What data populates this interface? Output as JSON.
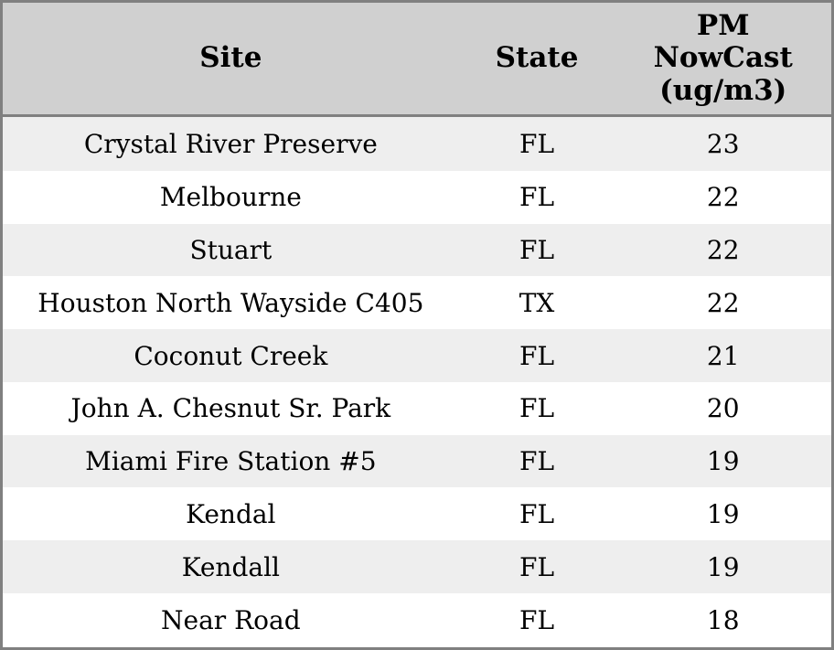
{
  "colors": {
    "border": "#808080",
    "header_bg": "#d0d0d0",
    "row_alt_bg": "#eeeeee",
    "row_bg": "#ffffff",
    "text": "#000000"
  },
  "table": {
    "columns": [
      {
        "key": "site",
        "label": "Site"
      },
      {
        "key": "state",
        "label": "State"
      },
      {
        "key": "pm_nowcast",
        "label": "PM\nNowCast\n(ug/m3)"
      }
    ],
    "rows": [
      {
        "site": "Crystal River Preserve",
        "state": "FL",
        "pm_nowcast": "23"
      },
      {
        "site": "Melbourne",
        "state": "FL",
        "pm_nowcast": "22"
      },
      {
        "site": "Stuart",
        "state": "FL",
        "pm_nowcast": "22"
      },
      {
        "site": "Houston North Wayside C405",
        "state": "TX",
        "pm_nowcast": "22"
      },
      {
        "site": "Coconut Creek",
        "state": "FL",
        "pm_nowcast": "21"
      },
      {
        "site": "John A. Chesnut Sr. Park",
        "state": "FL",
        "pm_nowcast": "20"
      },
      {
        "site": "Miami Fire Station #5",
        "state": "FL",
        "pm_nowcast": "19"
      },
      {
        "site": "Kendal",
        "state": "FL",
        "pm_nowcast": "19"
      },
      {
        "site": "Kendall",
        "state": "FL",
        "pm_nowcast": "19"
      },
      {
        "site": "Near Road",
        "state": "FL",
        "pm_nowcast": "18"
      }
    ]
  }
}
